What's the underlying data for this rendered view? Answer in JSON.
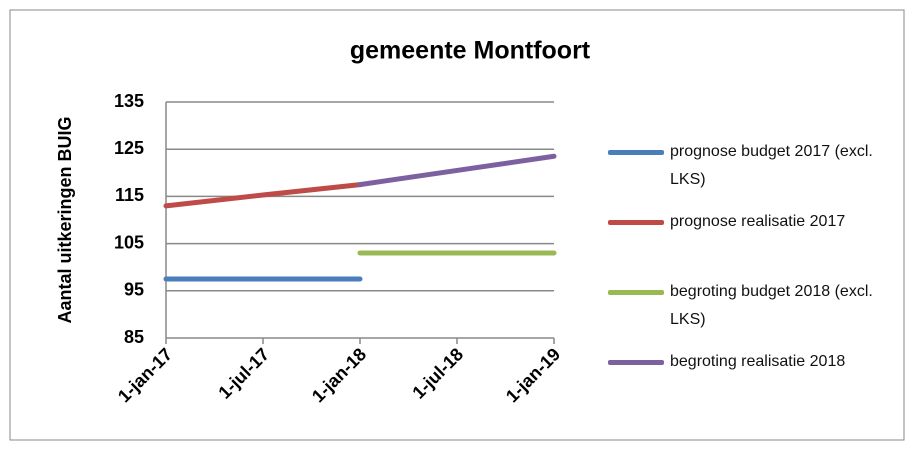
{
  "chart_data": {
    "type": "line",
    "title": "gemeente Montfoort",
    "y_label": "Aantal uitkeringen BUIG",
    "categories": [
      "1-jan-17",
      "1-jul-17",
      "1-jan-18",
      "1-jul-18",
      "1-jan-19"
    ],
    "series": [
      {
        "name": "prognose budget 2017 (excl. LKS)",
        "color": "#4a7ebb",
        "values": [
          97.5,
          97.5,
          97.5,
          null,
          null
        ]
      },
      {
        "name": "prognose realisatie 2017",
        "color": "#be4b48",
        "values": [
          113,
          115.3,
          117.5,
          null,
          null
        ]
      },
      {
        "name": "begroting budget 2018 (excl. LKS)",
        "color": "#98b954",
        "values": [
          null,
          null,
          103,
          103,
          103
        ]
      },
      {
        "name": "begroting realisatie 2018",
        "color": "#7d60a0",
        "values": [
          null,
          null,
          117.5,
          120.5,
          123.5
        ]
      }
    ],
    "ylim": [
      85,
      135
    ],
    "yticks": [
      85,
      95,
      105,
      115,
      125,
      135
    ],
    "grid": true,
    "legend": "right"
  }
}
